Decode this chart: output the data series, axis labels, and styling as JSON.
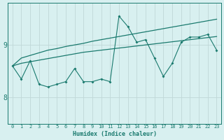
{
  "xlabel": "Humidex (Indice chaleur)",
  "ylabel": "",
  "bg_color": "#d8f0f0",
  "line_color": "#1a7a6e",
  "grid_color": "#c0d8d8",
  "x_data": [
    0,
    1,
    2,
    3,
    4,
    5,
    6,
    7,
    8,
    9,
    10,
    11,
    12,
    13,
    14,
    15,
    16,
    17,
    18,
    19,
    20,
    21,
    22,
    23
  ],
  "y_main": [
    8.6,
    8.35,
    8.7,
    8.25,
    8.2,
    8.25,
    8.3,
    8.55,
    8.3,
    8.3,
    8.35,
    8.3,
    9.55,
    9.35,
    9.05,
    9.1,
    8.75,
    8.4,
    8.65,
    9.05,
    9.15,
    9.15,
    9.2,
    8.9
  ],
  "y_upper": [
    8.6,
    8.75,
    8.8,
    8.85,
    8.9,
    8.93,
    8.97,
    9.0,
    9.03,
    9.07,
    9.1,
    9.13,
    9.16,
    9.19,
    9.22,
    9.25,
    9.28,
    9.31,
    9.34,
    9.37,
    9.4,
    9.43,
    9.46,
    9.49
  ],
  "y_lower": [
    8.6,
    8.65,
    8.68,
    8.71,
    8.74,
    8.77,
    8.8,
    8.83,
    8.86,
    8.88,
    8.9,
    8.92,
    8.94,
    8.96,
    8.98,
    9.0,
    9.02,
    9.04,
    9.06,
    9.08,
    9.1,
    9.12,
    9.14,
    9.16
  ],
  "ylim": [
    7.5,
    9.8
  ],
  "yticks": [
    8.0,
    9.0
  ],
  "xlim": [
    -0.5,
    23.5
  ],
  "figsize": [
    3.2,
    2.0
  ],
  "dpi": 100
}
